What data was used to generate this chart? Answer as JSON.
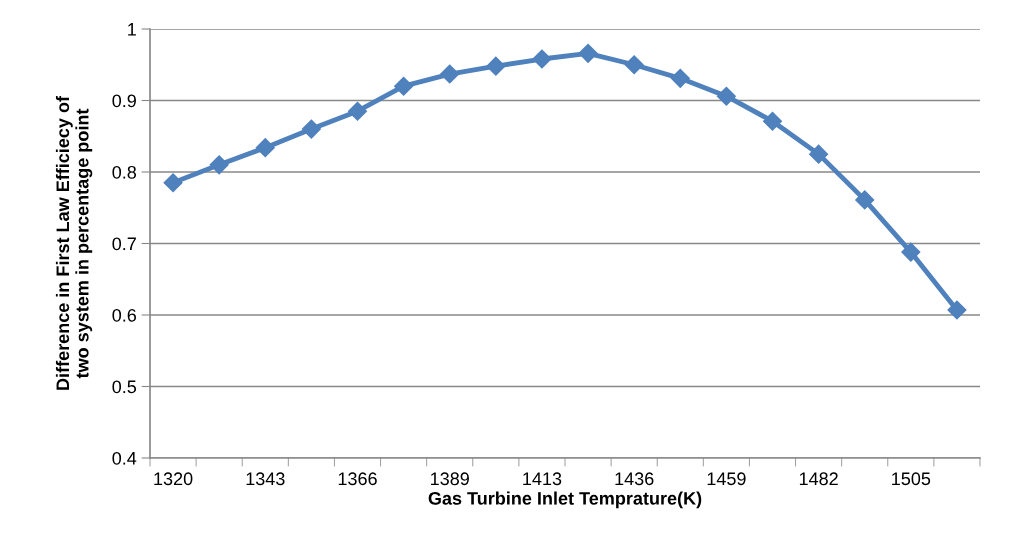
{
  "chart_data": {
    "type": "line",
    "xlabel": "Gas Turbine Inlet Temprature(K)",
    "ylabel": "Difference in First Law Efficiecy of\ntwo system in percentage point",
    "categories": [
      "1320",
      null,
      "1343",
      null,
      "1366",
      null,
      "1389",
      null,
      "1413",
      null,
      "1436",
      null,
      "1459",
      null,
      "1482",
      null,
      "1505",
      null
    ],
    "series": [
      {
        "color": "#4f81bd",
        "values": [
          0.785,
          0.81,
          0.834,
          0.86,
          0.885,
          0.92,
          0.937,
          0.948,
          0.958,
          0.966,
          0.95,
          0.931,
          0.906,
          0.871,
          0.825,
          0.761,
          0.688,
          0.607
        ]
      }
    ],
    "ylim": [
      0.4,
      1
    ],
    "yticks": [
      0.4,
      0.5,
      0.6,
      0.7,
      0.8,
      0.9,
      1
    ],
    "grid": "y",
    "marker": "diamond",
    "line_style": "solid",
    "legend": false
  }
}
